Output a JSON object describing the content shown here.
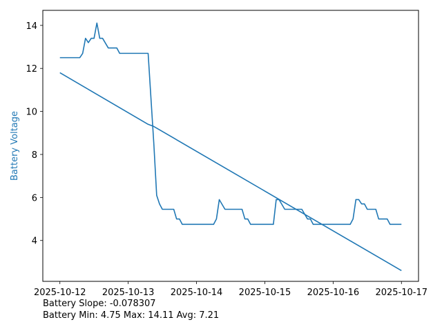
{
  "chart_data": {
    "type": "line",
    "ylabel": "Battery Voltage",
    "xlabel": "",
    "title": "",
    "x_ticks": [
      "2025-10-12",
      "2025-10-13",
      "2025-10-14",
      "2025-10-15",
      "2025-10-16",
      "2025-10-17"
    ],
    "y_ticks": [
      4,
      6,
      8,
      10,
      12,
      14
    ],
    "xlim": [
      "2025-10-11T18:00",
      "2025-10-17T06:00"
    ],
    "ylim": [
      2.1,
      14.7
    ],
    "grid": false,
    "colors": {
      "line": "#1f77b4",
      "ylabel": "#1f77b4",
      "axes": "#000000"
    },
    "series": [
      {
        "values": [
          [
            "2025-10-12T00:00",
            12.5
          ],
          [
            "2025-10-12T07:00",
            12.5
          ],
          [
            "2025-10-12T08:00",
            12.7
          ],
          [
            "2025-10-12T09:00",
            13.4
          ],
          [
            "2025-10-12T10:00",
            13.2
          ],
          [
            "2025-10-12T11:00",
            13.4
          ],
          [
            "2025-10-12T12:00",
            13.4
          ],
          [
            "2025-10-12T13:00",
            14.11
          ],
          [
            "2025-10-12T14:00",
            13.4
          ],
          [
            "2025-10-12T15:00",
            13.4
          ],
          [
            "2025-10-12T17:00",
            12.95
          ],
          [
            "2025-10-12T20:00",
            12.95
          ],
          [
            "2025-10-12T21:00",
            12.7
          ],
          [
            "2025-10-13T07:00",
            12.7
          ],
          [
            "2025-10-13T09:00",
            8.5
          ],
          [
            "2025-10-13T10:00",
            6.1
          ],
          [
            "2025-10-13T11:00",
            5.7
          ],
          [
            "2025-10-13T12:00",
            5.45
          ],
          [
            "2025-10-13T16:00",
            5.45
          ],
          [
            "2025-10-13T17:00",
            5.0
          ],
          [
            "2025-10-13T18:00",
            5.0
          ],
          [
            "2025-10-13T19:00",
            4.75
          ],
          [
            "2025-10-14T06:00",
            4.75
          ],
          [
            "2025-10-14T07:00",
            5.0
          ],
          [
            "2025-10-14T08:00",
            5.9
          ],
          [
            "2025-10-14T10:00",
            5.45
          ],
          [
            "2025-10-14T16:00",
            5.45
          ],
          [
            "2025-10-14T17:00",
            5.0
          ],
          [
            "2025-10-14T18:00",
            5.0
          ],
          [
            "2025-10-14T19:00",
            4.75
          ],
          [
            "2025-10-15T03:00",
            4.75
          ],
          [
            "2025-10-15T04:00",
            5.9
          ],
          [
            "2025-10-15T05:00",
            5.9
          ],
          [
            "2025-10-15T07:00",
            5.45
          ],
          [
            "2025-10-15T13:00",
            5.45
          ],
          [
            "2025-10-15T15:00",
            5.0
          ],
          [
            "2025-10-15T16:00",
            5.0
          ],
          [
            "2025-10-15T17:00",
            4.75
          ],
          [
            "2025-10-16T06:00",
            4.75
          ],
          [
            "2025-10-16T07:00",
            5.0
          ],
          [
            "2025-10-16T08:00",
            5.9
          ],
          [
            "2025-10-16T09:00",
            5.9
          ],
          [
            "2025-10-16T10:00",
            5.7
          ],
          [
            "2025-10-16T11:00",
            5.7
          ],
          [
            "2025-10-16T12:00",
            5.45
          ],
          [
            "2025-10-16T15:00",
            5.45
          ],
          [
            "2025-10-16T16:00",
            5.0
          ],
          [
            "2025-10-16T19:00",
            5.0
          ],
          [
            "2025-10-16T20:00",
            4.75
          ],
          [
            "2025-10-17T00:00",
            4.75
          ]
        ]
      },
      {
        "type": "line",
        "values": [
          [
            "2025-10-12T00:00",
            11.8
          ],
          [
            "2025-10-13T07:00",
            9.4
          ],
          [
            "2025-10-13T09:00",
            9.3
          ],
          [
            "2025-10-17T00:00",
            2.6
          ]
        ]
      }
    ]
  },
  "stats": {
    "slope_text": "Battery Slope: -0.078307",
    "minmax_text": "Battery Min: 4.75 Max: 14.11 Avg: 7.21"
  }
}
